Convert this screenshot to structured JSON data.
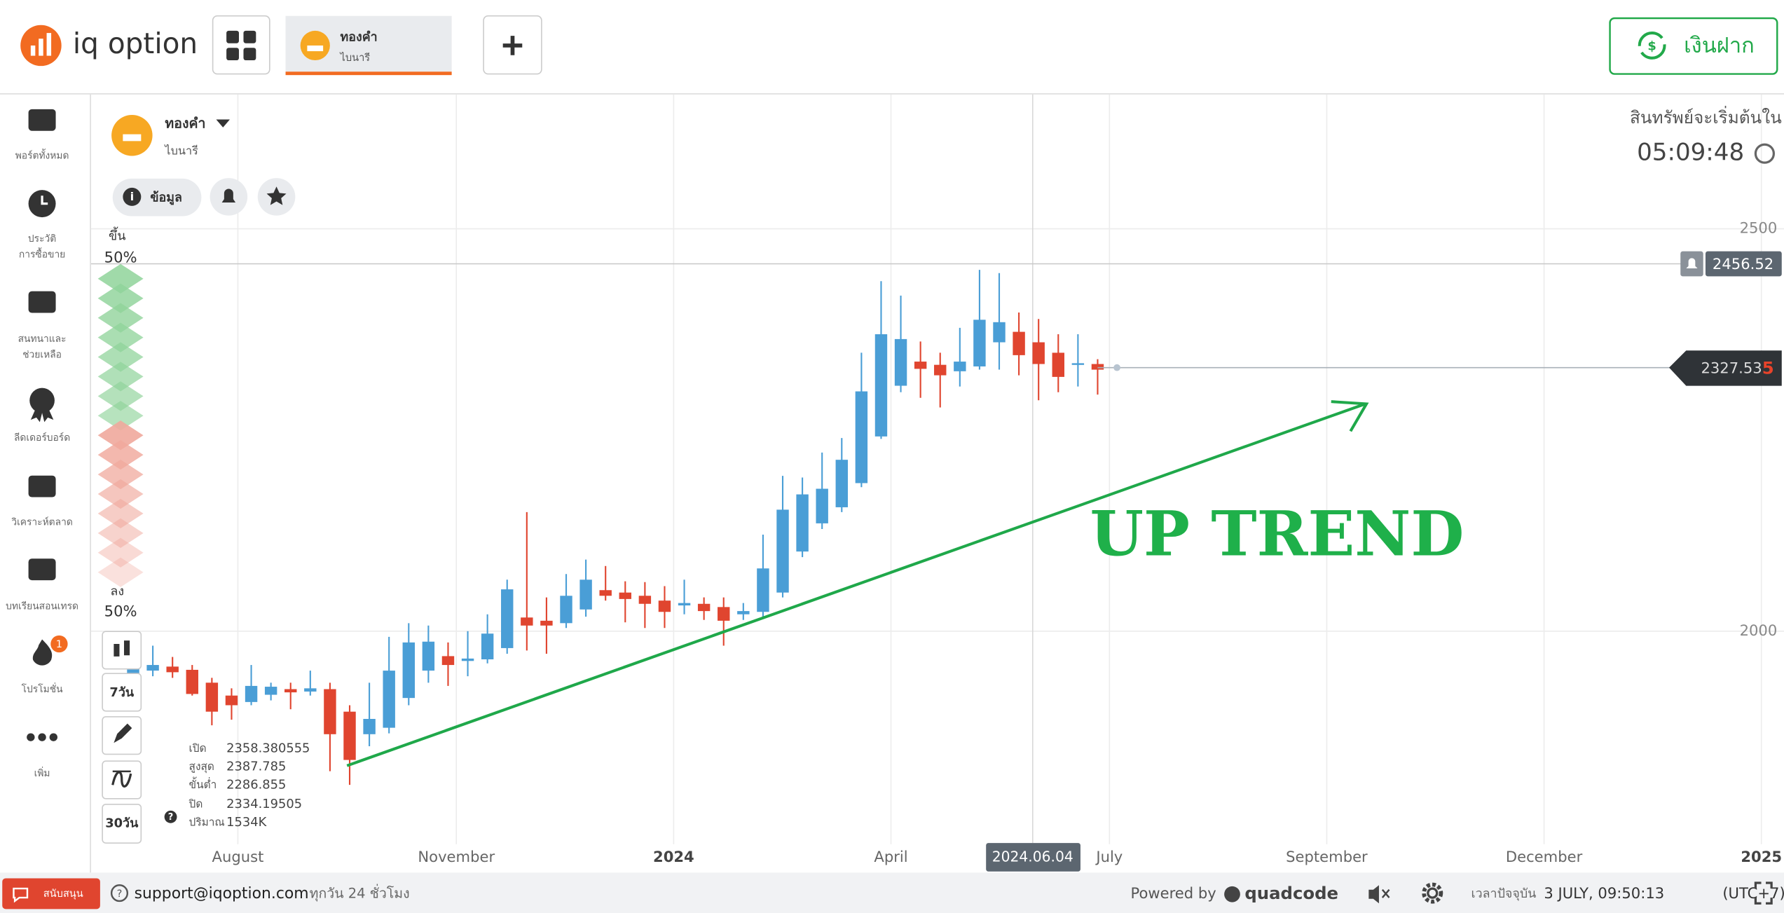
{
  "header": {
    "logo": "iq option",
    "tab": {
      "title": "ทองคำ",
      "subtitle": "ไบนารี"
    },
    "deposit": "เงินฝาก"
  },
  "sidebar": [
    [
      "พอร์ตทั้งหมด"
    ],
    [
      "ประวัติ",
      "การซื้อขาย"
    ],
    [
      "สนทนาและ",
      "ช่วยเหลือ"
    ],
    [
      "ลีดเดอร์บอร์ด"
    ],
    [
      "วิเคราะห์ตลาด"
    ],
    [
      "บทเรียนสอนเทรด"
    ],
    [
      "โปรโมชั่น"
    ],
    [
      "เพิ่ม"
    ]
  ],
  "promo_badge": "1",
  "asset": {
    "title": "ทองคำ",
    "subtitle": "ไบนารี",
    "info_button": "ข้อมูล"
  },
  "timer": {
    "label": "สินทรัพย์จะเริ่มต้นใน",
    "time": "05:09:48"
  },
  "sentiment": {
    "up_label": "ขึ้น",
    "up_percent": "50%",
    "down_label": "ลง",
    "down_percent": "50%"
  },
  "tools": {
    "period_short": "7วัน",
    "period_long": "30วัน"
  },
  "ohlc_info": {
    "labels": [
      "เปิด",
      "สูงสุด",
      "ขั้นต่ำ",
      "ปิด",
      "ปริมาณ"
    ],
    "values": [
      "2358.380555",
      "2387.785",
      "2286.855",
      "2334.19505",
      "1534K"
    ]
  },
  "chart_data": {
    "type": "candlestick",
    "open": [
      1939,
      1951,
      1956,
      1952,
      1936,
      1920,
      1912,
      1921,
      1928,
      1925,
      1928,
      1900,
      1872,
      1880,
      1917,
      1951,
      1969,
      1963,
      1965,
      1979,
      2017,
      2013,
      2010,
      2027,
      2051,
      2048,
      2044,
      2038,
      2032,
      2034,
      2030,
      2021,
      2024,
      2048,
      2099,
      2134,
      2154,
      2184,
      2242,
      2305,
      2335,
      2331,
      2323,
      2329,
      2359,
      2372,
      2359,
      2346,
      2331,
      2332
    ],
    "high": [
      1979,
      1982,
      1968,
      1958,
      1942,
      1929,
      1958,
      1936,
      1936,
      1951,
      1936,
      1908,
      1936,
      1993,
      2010,
      2007,
      1986,
      2000,
      2021,
      2064,
      2148,
      2042,
      2071,
      2089,
      2081,
      2062,
      2061,
      2056,
      2064,
      2042,
      2042,
      2035,
      2120,
      2193,
      2191,
      2222,
      2240,
      2346,
      2435,
      2417,
      2360,
      2346,
      2377,
      2449,
      2445,
      2396,
      2388,
      2369,
      2369,
      2338
    ],
    "low": [
      1929,
      1944,
      1942,
      1920,
      1883,
      1890,
      1908,
      1914,
      1903,
      1920,
      1826,
      1809,
      1857,
      1873,
      1908,
      1936,
      1932,
      1944,
      1960,
      1972,
      1976,
      1972,
      2004,
      2018,
      2038,
      2011,
      2004,
      2004,
      2021,
      2014,
      1982,
      2014,
      2018,
      2042,
      2092,
      2127,
      2148,
      2179,
      2239,
      2297,
      2290,
      2278,
      2304,
      2325,
      2325,
      2318,
      2287,
      2297,
      2304,
      2294
    ],
    "close": [
      1962,
      1958,
      1949,
      1922,
      1900,
      1908,
      1932,
      1931,
      1924,
      1929,
      1872,
      1840,
      1891,
      1951,
      1986,
      1987,
      1958,
      1966,
      1997,
      2052,
      2007,
      2007,
      2044,
      2064,
      2044,
      2040,
      2034,
      2024,
      2035,
      2025,
      2013,
      2025,
      2078,
      2151,
      2170,
      2177,
      2213,
      2298,
      2369,
      2363,
      2326,
      2318,
      2335,
      2387,
      2384,
      2343,
      2332,
      2316,
      2333,
      2325
    ],
    "up_color": "#4a9ed6",
    "down_color": "#e0452f",
    "ylim": [
      1700,
      2667
    ],
    "yticks": [
      2000,
      2500
    ],
    "xlim": [
      -2.14,
      83.87
    ],
    "xticks": [
      {
        "value": 5.32,
        "label": "August"
      },
      {
        "value": 16.42,
        "label": "November"
      },
      {
        "value": 27.46,
        "label": "2024"
      },
      {
        "value": 38.5,
        "label": "April"
      },
      {
        "value": 49.6,
        "label": "July"
      },
      {
        "value": 60.64,
        "label": "September"
      },
      {
        "value": 71.68,
        "label": "December"
      },
      {
        "value": 82.72,
        "label": "2025"
      }
    ],
    "grid": true,
    "alert_price": 2456.52,
    "current_price": 2327.535,
    "current_price_label": [
      "2327.53",
      "5"
    ],
    "crosshair": {
      "value": 45.7,
      "label": "2024.06.04"
    },
    "annotation": "UP TREND"
  },
  "footer": {
    "support_button": "สนับสนุน",
    "email": "support@iqoption.com",
    "hours": "ทุกวัน 24 ชั่วโมง",
    "powered": "Powered by",
    "brand": "quadcode",
    "time_label": "เวลาปัจจุบัน",
    "time": "3 JULY, 09:50:13",
    "tz": "(UTC+7)"
  }
}
